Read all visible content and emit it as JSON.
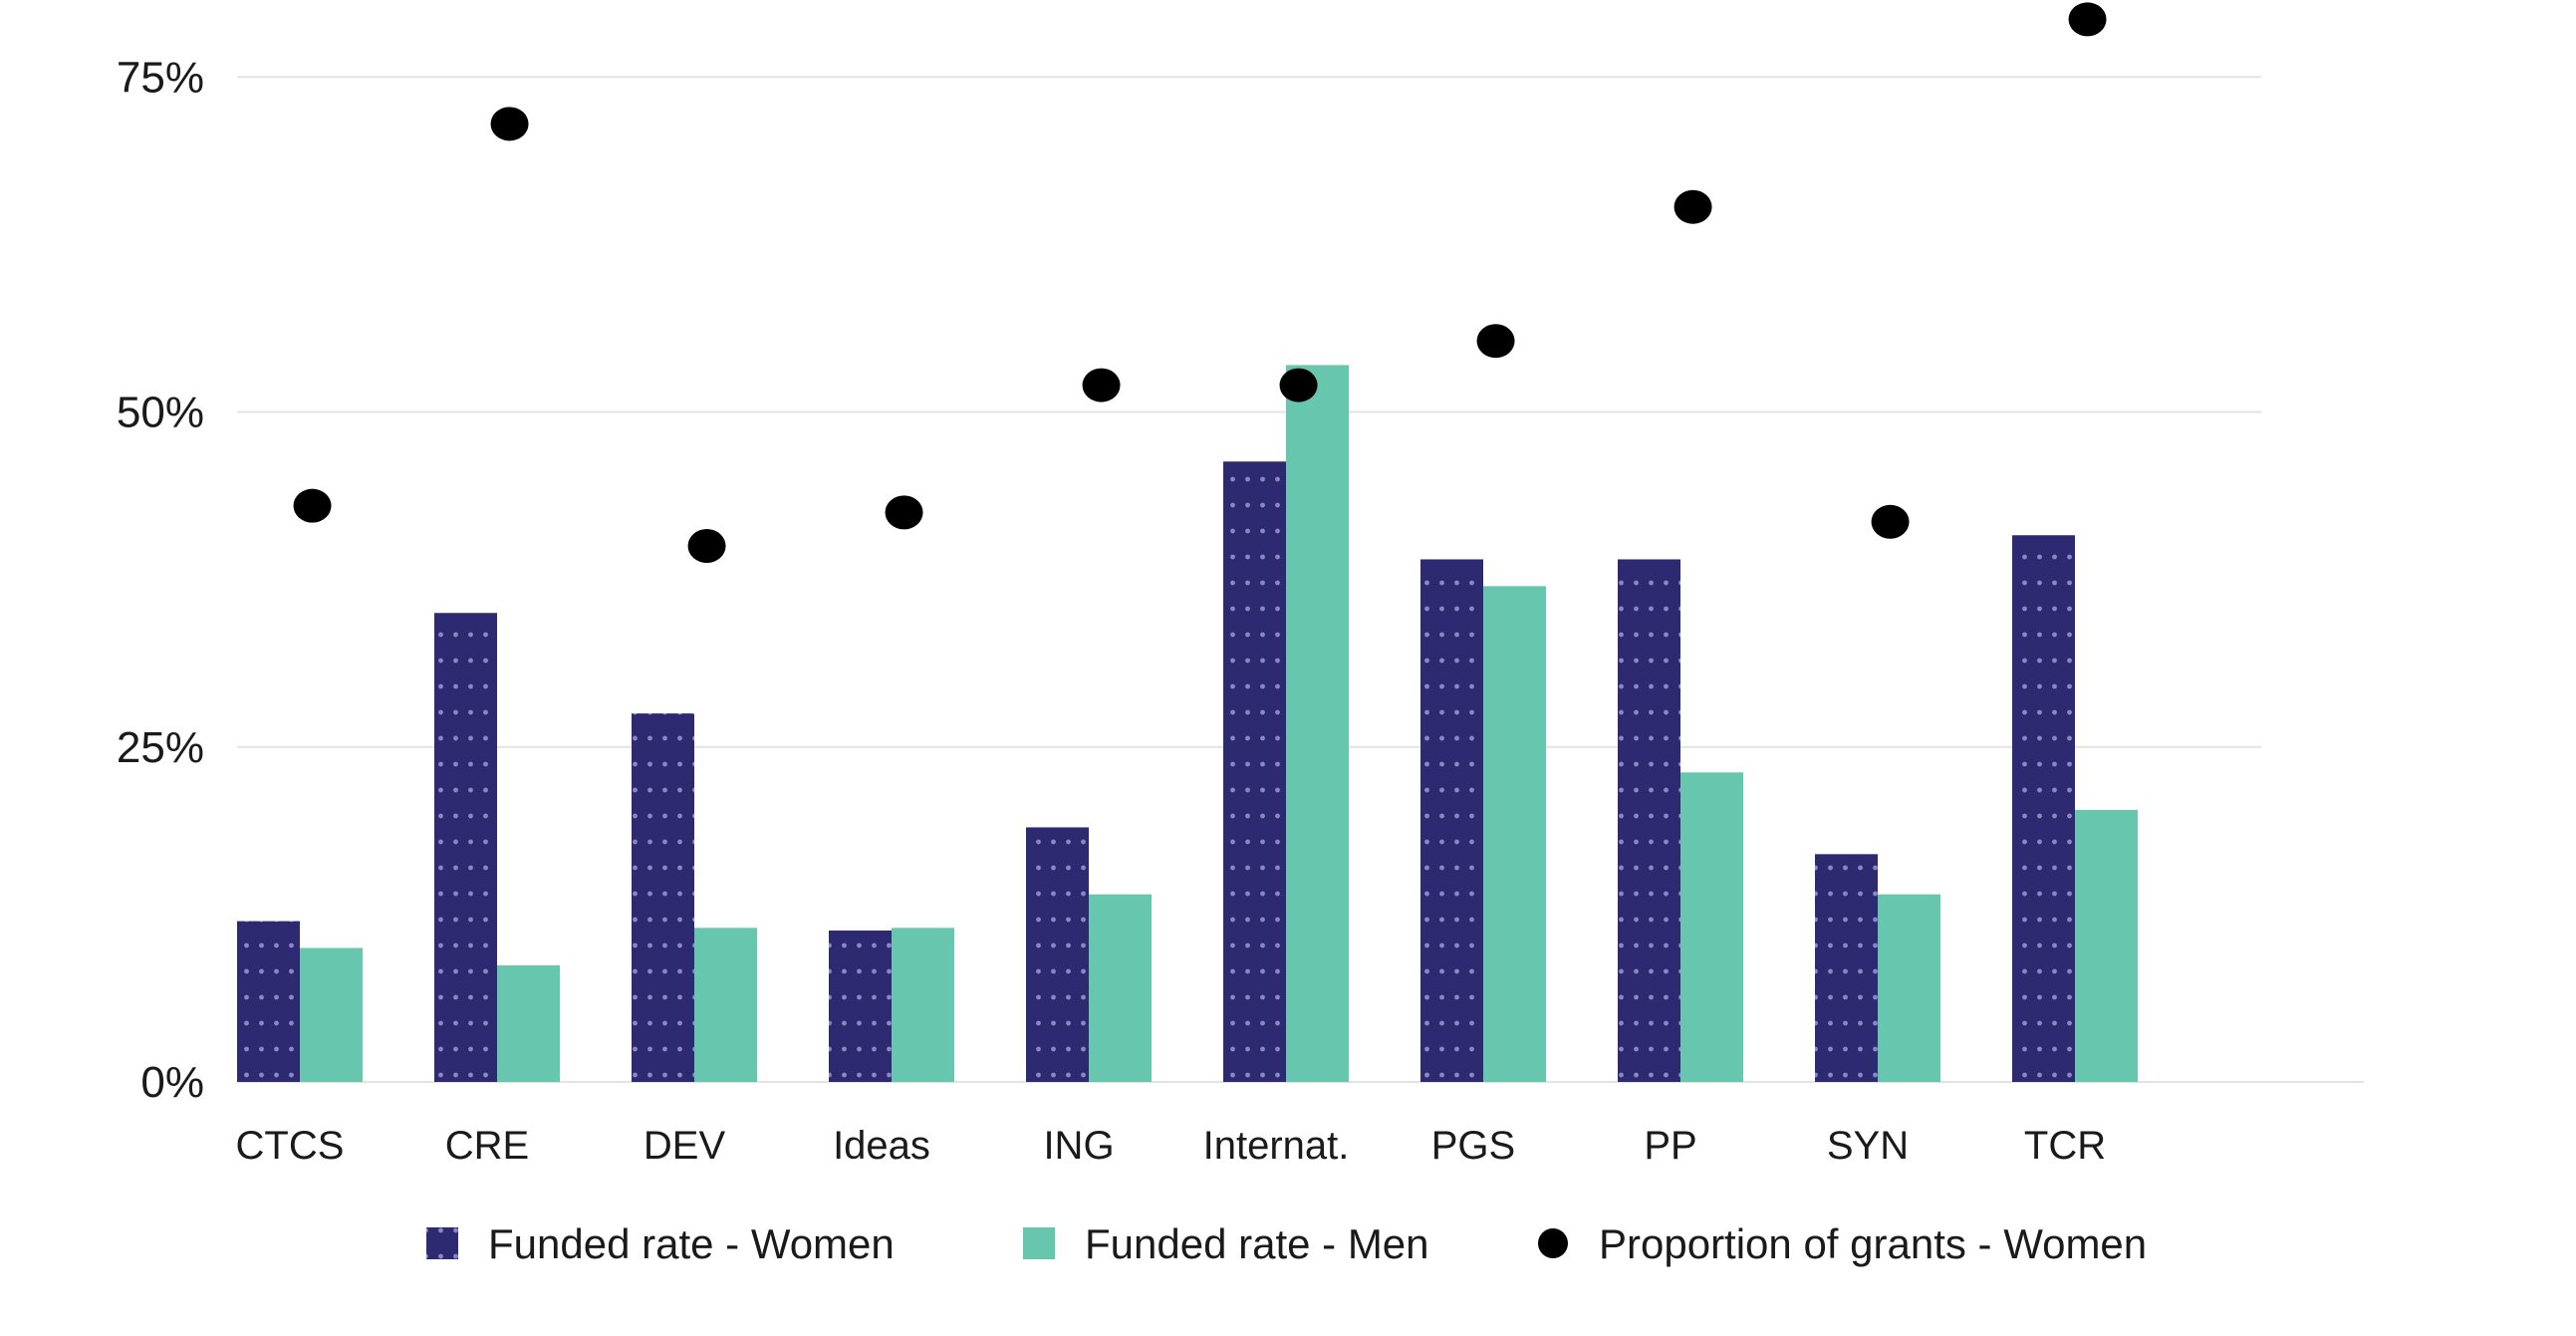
{
  "chart_data": {
    "type": "bar",
    "categories": [
      "CTCS",
      "CRE",
      "DEV",
      "Ideas",
      "ING",
      "Internat.",
      "PGS",
      "PP",
      "SYN",
      "TCR"
    ],
    "series": [
      {
        "name": "Funded rate - Women",
        "kind": "bar",
        "pattern": "dots",
        "color": "#2e2a72",
        "values": [
          12,
          35,
          27.5,
          11.3,
          19,
          46.3,
          39,
          39,
          17,
          40.8
        ]
      },
      {
        "name": "Funded rate - Men",
        "kind": "bar",
        "color": "#66c7ae",
        "values": [
          10,
          8.7,
          11.5,
          11.5,
          14,
          53.5,
          37,
          23.1,
          14,
          20.3
        ]
      },
      {
        "name": "Proportion of grants - Women",
        "kind": "scatter",
        "color": "#000000",
        "values": [
          43,
          71.5,
          40,
          42.5,
          52,
          52,
          55.3,
          65.3,
          41.8,
          79.3
        ]
      }
    ],
    "y_ticks": [
      "0%",
      "25%",
      "50%",
      "75%"
    ],
    "y_tick_values": [
      0,
      25,
      50,
      75
    ],
    "ylim": [
      0,
      80
    ],
    "grid": true,
    "legend_position": "bottom",
    "title": "",
    "xlabel": "",
    "ylabel": ""
  }
}
